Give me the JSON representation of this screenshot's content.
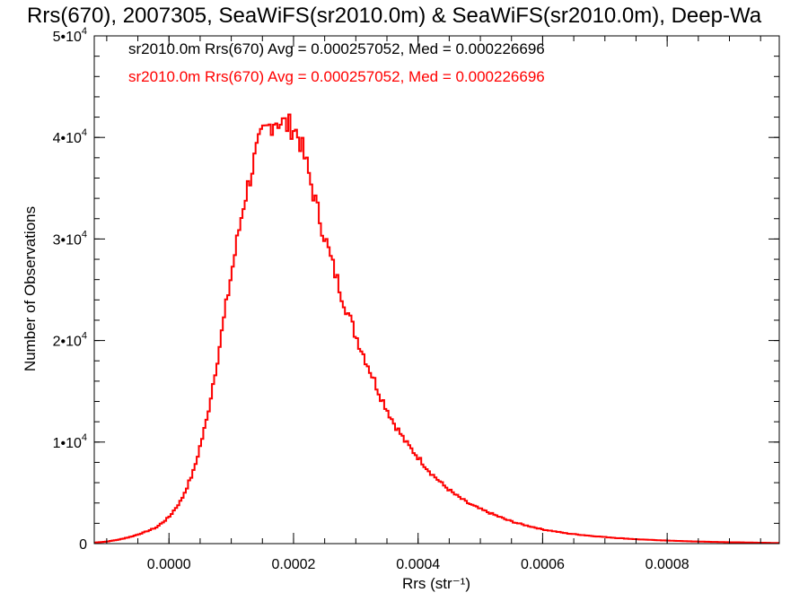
{
  "colors": {
    "background": "#ffffff",
    "axis": "#000000",
    "series_black": "#000000",
    "series_red": "#ff0000"
  },
  "chart_data": {
    "type": "line",
    "subtype": "step-histogram",
    "title": "Rrs(670), 2007305, SeaWiFS(sr2010.0m) & SeaWiFS(sr2010.0m), Deep-Wa",
    "xlabel": "Rrs (str⁻¹)",
    "ylabel": "Number of Observations",
    "xlim": [
      -0.00012,
      0.00098
    ],
    "ylim": [
      0,
      50000
    ],
    "grid": false,
    "x_ticks": [
      0.0,
      0.0002,
      0.0004,
      0.0006,
      0.0008
    ],
    "x_tick_labels": [
      "0.0000",
      "0.0002",
      "0.0004",
      "0.0006",
      "0.0008"
    ],
    "y_ticks": [
      0,
      10000,
      20000,
      30000,
      40000,
      50000
    ],
    "y_tick_labels": [
      {
        "base": "0",
        "exp": ""
      },
      {
        "base": "1•10",
        "exp": "4"
      },
      {
        "base": "2•10",
        "exp": "4"
      },
      {
        "base": "3•10",
        "exp": "4"
      },
      {
        "base": "4•10",
        "exp": "4"
      },
      {
        "base": "5•10",
        "exp": "4"
      }
    ],
    "annotations": [
      {
        "text": "sr2010.0m Rrs(670) Avg = 0.000257052, Med = 0.000226696",
        "color": "#000000"
      },
      {
        "text": "sr2010.0m Rrs(670) Avg = 0.000257052, Med = 0.000226696",
        "color": "#ff0000"
      }
    ],
    "x": [
      -0.00012,
      -0.0001,
      -8e-05,
      -6e-05,
      -4e-05,
      -2e-05,
      0.0,
      2e-05,
      4e-05,
      6e-05,
      8e-05,
      0.0001,
      0.00012,
      0.00014,
      0.00015,
      0.00016,
      0.00017,
      0.00018,
      0.00019,
      0.0002,
      0.00021,
      0.00022,
      0.00024,
      0.00026,
      0.00028,
      0.0003,
      0.00032,
      0.00034,
      0.00036,
      0.00038,
      0.0004,
      0.00042,
      0.00044,
      0.00046,
      0.00048,
      0.0005,
      0.00052,
      0.00054,
      0.00056,
      0.00058,
      0.0006,
      0.00064,
      0.00068,
      0.00072,
      0.00076,
      0.0008,
      0.00084,
      0.00088,
      0.00092,
      0.00096,
      0.00098
    ],
    "series": [
      {
        "line_color": "#000000",
        "values": [
          100,
          200,
          400,
          700,
          1100,
          1600,
          2600,
          4300,
          7200,
          12000,
          19000,
          26500,
          33500,
          38500,
          40200,
          41000,
          41800,
          41500,
          41200,
          41000,
          39800,
          37500,
          32500,
          28000,
          24000,
          20500,
          17500,
          14500,
          12000,
          10000,
          8500,
          7000,
          5800,
          4800,
          4000,
          3400,
          2900,
          2400,
          2000,
          1700,
          1400,
          1000,
          750,
          550,
          400,
          300,
          220,
          160,
          120,
          80,
          60
        ]
      },
      {
        "line_color": "#ff0000",
        "values": [
          100,
          200,
          400,
          700,
          1100,
          1600,
          2600,
          4300,
          7200,
          12000,
          19000,
          26500,
          33500,
          38500,
          40200,
          41000,
          41800,
          41500,
          41200,
          41000,
          39800,
          37500,
          32500,
          28000,
          24000,
          20500,
          17500,
          14500,
          12000,
          10000,
          8500,
          7000,
          5800,
          4800,
          4000,
          3400,
          2900,
          2400,
          2000,
          1700,
          1400,
          1000,
          750,
          550,
          400,
          300,
          220,
          160,
          120,
          80,
          60
        ]
      }
    ]
  }
}
